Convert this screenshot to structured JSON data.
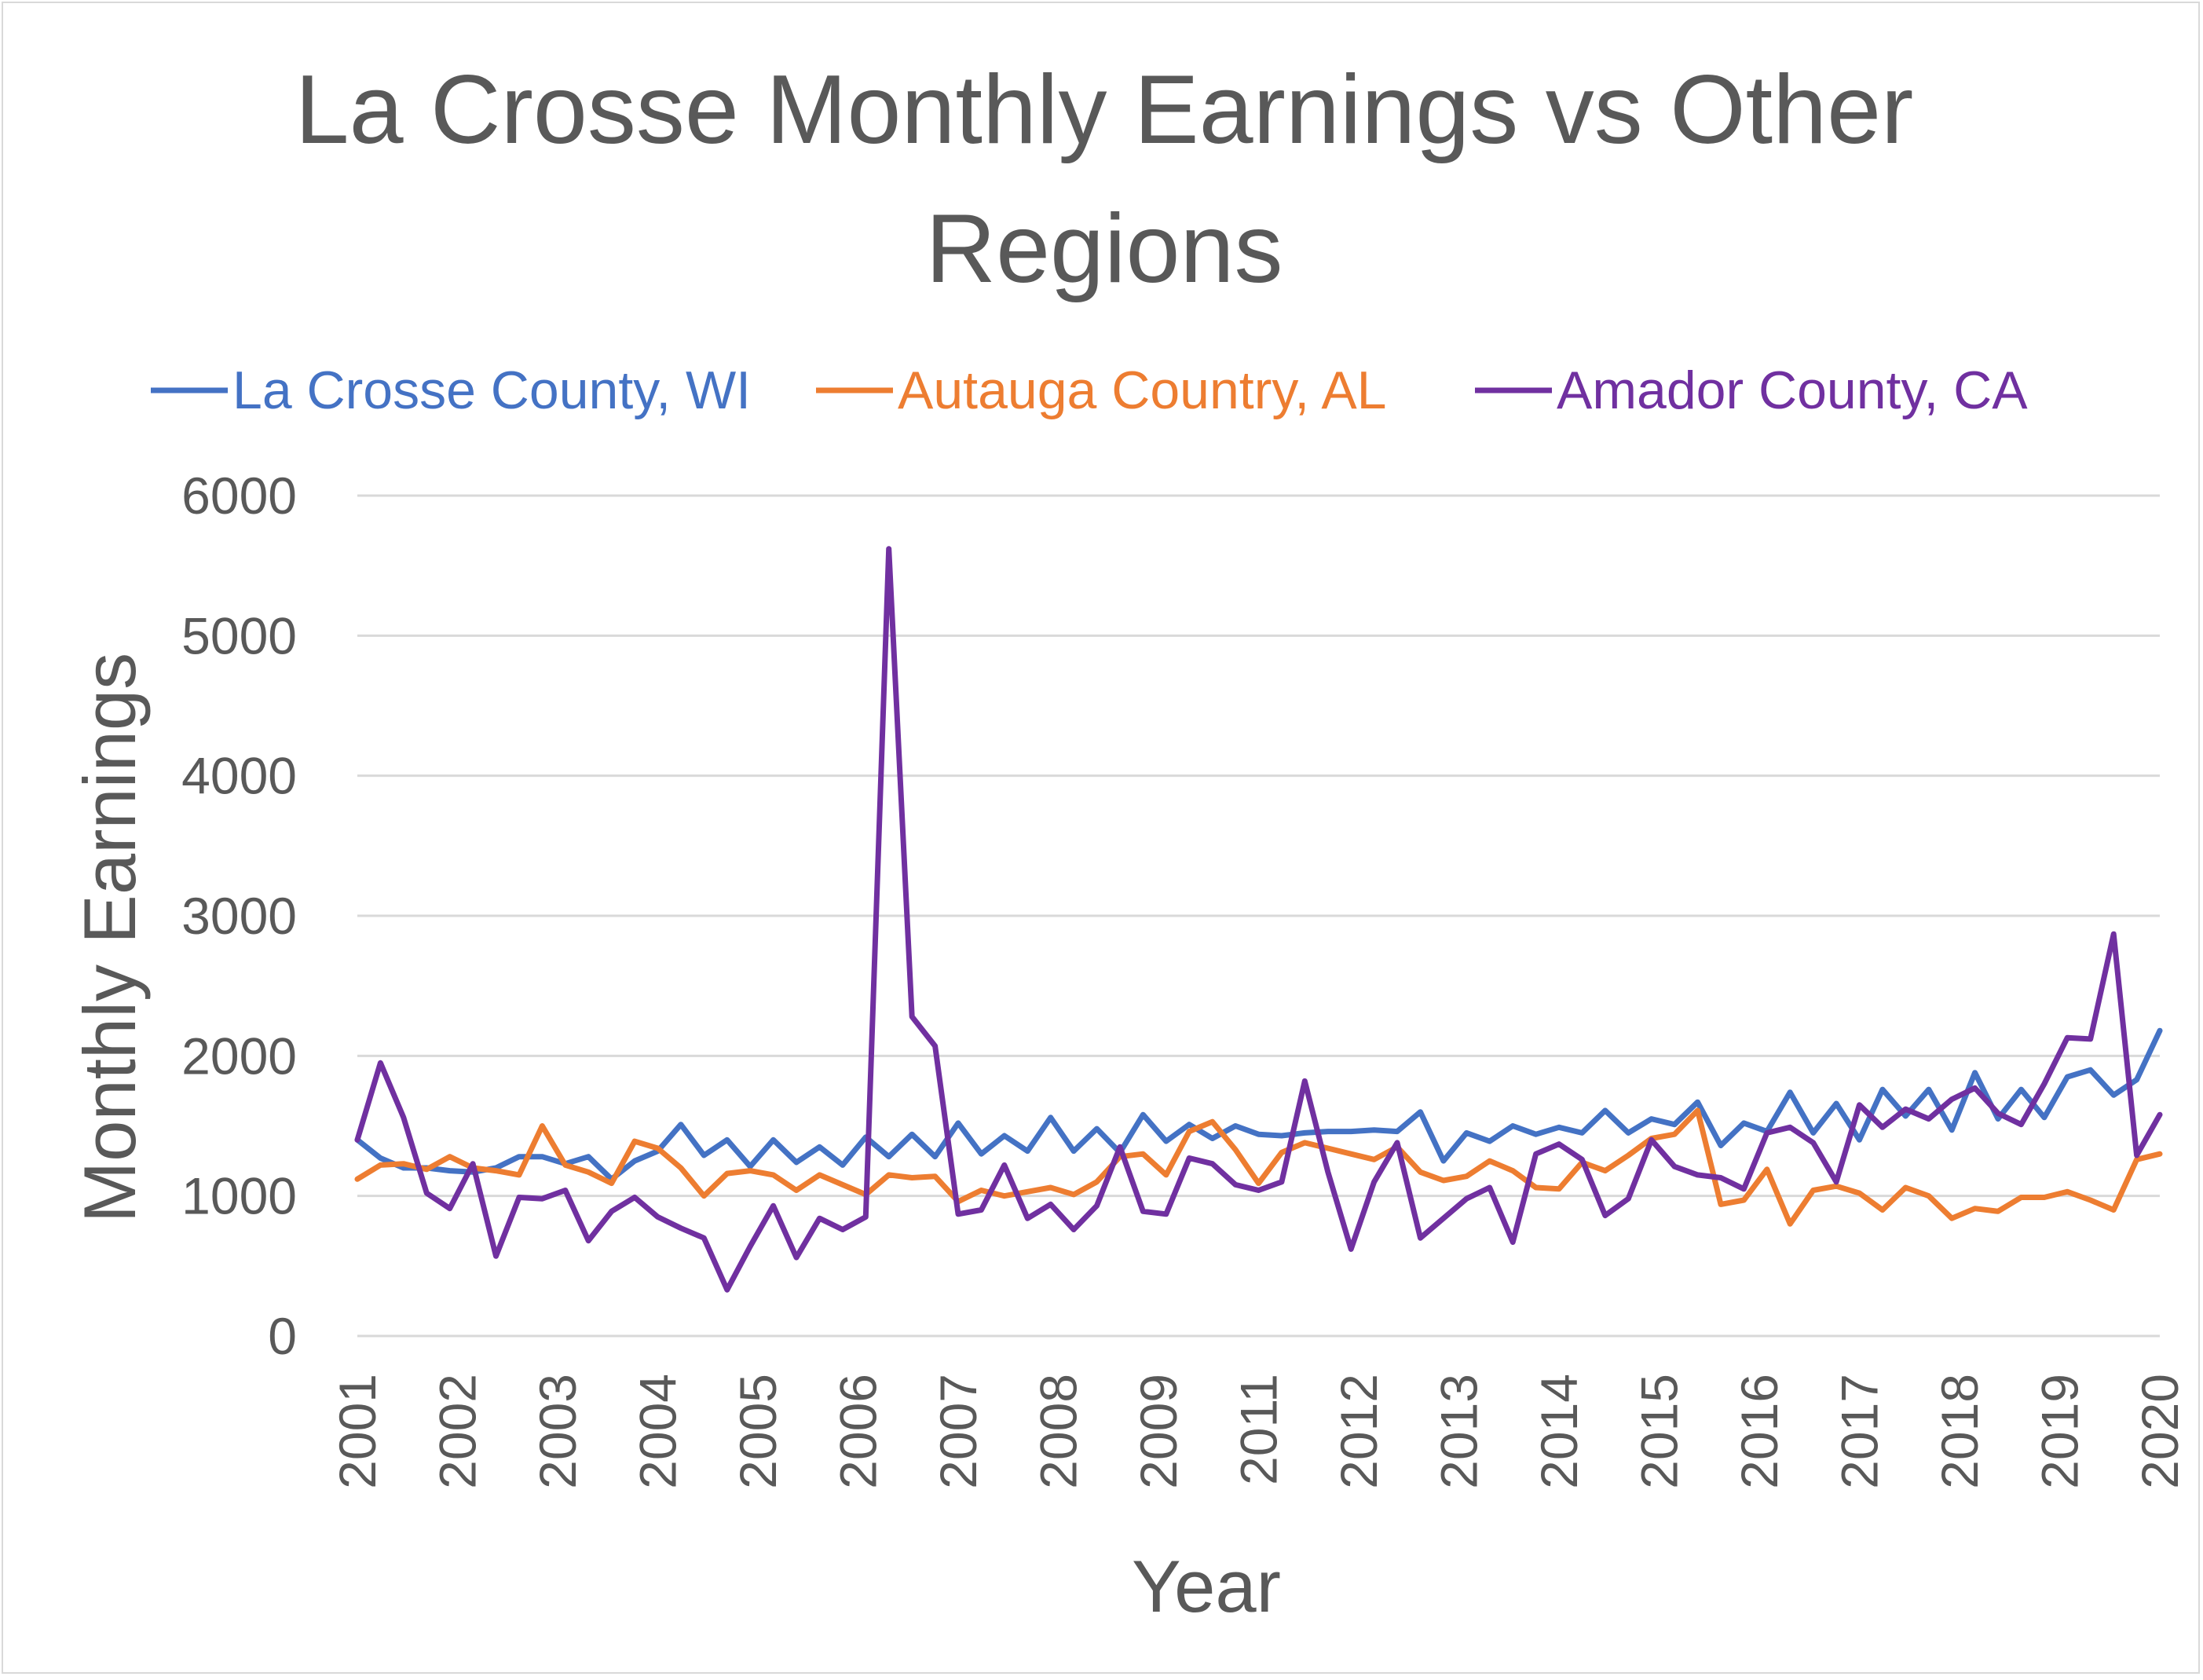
{
  "chart_data": {
    "type": "line",
    "title_lines": [
      "La Crosse Monthly Earnings vs Other",
      "Regions"
    ],
    "xlabel": "Year",
    "ylabel": "Monthly Earnings",
    "ylim": [
      0,
      6000
    ],
    "y_ticks": [
      "0",
      "1000",
      "2000",
      "3000",
      "4000",
      "5000",
      "6000"
    ],
    "x_ticks": [
      "2001",
      "2002",
      "2003",
      "2004",
      "2005",
      "2006",
      "2007",
      "2008",
      "2009",
      "2011",
      "2012",
      "2013",
      "2014",
      "2015",
      "2016",
      "2017",
      "2018",
      "2019",
      "2020"
    ],
    "grid": true,
    "legend_position": "top",
    "series": [
      {
        "name": "La Crosse County, WI",
        "color": "#4472c4",
        "values": [
          1400,
          1270,
          1200,
          1200,
          1180,
          1170,
          1200,
          1280,
          1280,
          1230,
          1280,
          1120,
          1250,
          1320,
          1510,
          1290,
          1400,
          1210,
          1400,
          1240,
          1350,
          1220,
          1420,
          1280,
          1440,
          1280,
          1520,
          1300,
          1430,
          1320,
          1560,
          1320,
          1480,
          1310,
          1580,
          1390,
          1510,
          1410,
          1500,
          1440,
          1430,
          1450,
          1460,
          1460,
          1470,
          1460,
          1600,
          1250,
          1450,
          1390,
          1500,
          1440,
          1490,
          1450,
          1610,
          1450,
          1550,
          1510,
          1670,
          1360,
          1520,
          1460,
          1740,
          1450,
          1660,
          1400,
          1760,
          1570,
          1760,
          1470,
          1880,
          1550,
          1760,
          1560,
          1850,
          1900,
          1720,
          1830,
          2180
        ]
      },
      {
        "name": "Autauga Country, AL",
        "color": "#ed7d31",
        "values": [
          1120,
          1220,
          1230,
          1190,
          1280,
          1200,
          1180,
          1150,
          1500,
          1220,
          1170,
          1090,
          1390,
          1340,
          1200,
          1000,
          1160,
          1180,
          1150,
          1040,
          1150,
          1080,
          1010,
          1150,
          1130,
          1140,
          960,
          1040,
          1000,
          1030,
          1060,
          1010,
          1100,
          1280,
          1300,
          1150,
          1460,
          1530,
          1330,
          1090,
          1310,
          1380,
          1340,
          1300,
          1260,
          1350,
          1170,
          1110,
          1140,
          1250,
          1180,
          1060,
          1050,
          1240,
          1180,
          1290,
          1410,
          1440,
          1610,
          940,
          970,
          1190,
          800,
          1040,
          1070,
          1020,
          900,
          1060,
          1000,
          840,
          910,
          890,
          990,
          990,
          1030,
          970,
          900,
          1260,
          1300
        ]
      },
      {
        "name": "Amador County, CA",
        "color": "#7030a0",
        "values": [
          1400,
          1950,
          1560,
          1020,
          910,
          1230,
          570,
          990,
          980,
          1040,
          680,
          890,
          990,
          850,
          770,
          700,
          330,
          640,
          930,
          560,
          840,
          760,
          850,
          5620,
          2280,
          2070,
          870,
          900,
          1220,
          840,
          940,
          760,
          930,
          1350,
          890,
          870,
          1270,
          1230,
          1080,
          1040,
          1100,
          1820,
          1170,
          620,
          1100,
          1380,
          700,
          840,
          980,
          1060,
          670,
          1300,
          1370,
          1260,
          860,
          980,
          1400,
          1210,
          1150,
          1130,
          1050,
          1450,
          1490,
          1380,
          1100,
          1650,
          1490,
          1620,
          1550,
          1690,
          1770,
          1590,
          1510,
          1800,
          2130,
          2120,
          2870,
          1290,
          1580
        ]
      }
    ]
  }
}
